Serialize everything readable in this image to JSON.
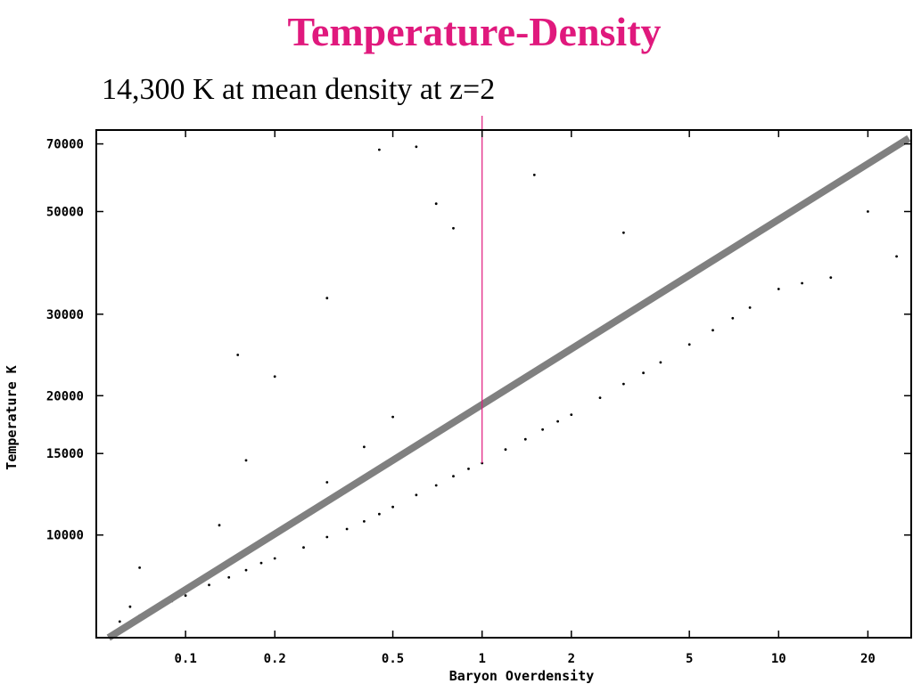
{
  "slide": {
    "title": "Temperature-Density",
    "annotation": "14,300 K at mean density at z=2"
  },
  "colors": {
    "title": "#e0197d",
    "points": "#000000",
    "fit_line": "#808080",
    "arrow": "#e0197d"
  },
  "chart_data": {
    "type": "scatter",
    "xlabel": "Baryon Overdensity",
    "ylabel": "Temperature  K",
    "xscale": "log",
    "yscale": "log",
    "xlim": [
      0.05,
      28
    ],
    "ylim": [
      6000,
      75000
    ],
    "x_ticks": [
      0.1,
      0.2,
      0.5,
      1,
      2,
      5,
      10,
      20
    ],
    "x_tick_labels": [
      "0.1",
      "0.2",
      "0.5",
      "1",
      "2",
      "5",
      "10",
      "20"
    ],
    "y_ticks": [
      10000,
      15000,
      20000,
      30000,
      50000,
      70000
    ],
    "y_tick_labels": [
      "10000",
      "15000",
      "20000",
      "30000",
      "50000",
      "70000"
    ],
    "grid": false,
    "fit_line": {
      "x": [
        0.055,
        27.5
      ],
      "y": [
        6000,
        72000
      ]
    },
    "annotation_point": {
      "x": 1,
      "y": 14300
    },
    "series": [
      {
        "points": [
          [
            0.06,
            6500
          ],
          [
            0.07,
            6700
          ],
          [
            0.08,
            6900
          ],
          [
            0.09,
            7200
          ],
          [
            0.1,
            7400
          ],
          [
            0.12,
            7800
          ],
          [
            0.14,
            8100
          ],
          [
            0.16,
            8400
          ],
          [
            0.18,
            8700
          ],
          [
            0.2,
            8900
          ],
          [
            0.25,
            9400
          ],
          [
            0.3,
            9900
          ],
          [
            0.35,
            10300
          ],
          [
            0.4,
            10700
          ],
          [
            0.45,
            11100
          ],
          [
            0.5,
            11500
          ],
          [
            0.6,
            12200
          ],
          [
            0.7,
            12800
          ],
          [
            0.8,
            13400
          ],
          [
            0.9,
            13900
          ],
          [
            1.0,
            14300
          ],
          [
            1.2,
            15300
          ],
          [
            1.4,
            16100
          ],
          [
            1.6,
            16900
          ],
          [
            1.8,
            17600
          ],
          [
            2.0,
            18200
          ],
          [
            2.5,
            19800
          ],
          [
            3.0,
            21200
          ],
          [
            3.5,
            22400
          ],
          [
            4.0,
            23600
          ],
          [
            5.0,
            25800
          ],
          [
            6.0,
            27700
          ],
          [
            7.0,
            29400
          ],
          [
            8.0,
            31000
          ],
          [
            10.0,
            34000
          ],
          [
            0.15,
            24500
          ],
          [
            0.2,
            22000
          ],
          [
            0.16,
            14500
          ],
          [
            0.13,
            10500
          ],
          [
            0.3,
            32500
          ],
          [
            0.45,
            68000
          ],
          [
            0.6,
            69000
          ],
          [
            0.7,
            52000
          ],
          [
            0.8,
            46000
          ],
          [
            1.5,
            60000
          ],
          [
            3.0,
            45000
          ],
          [
            12.0,
            35000
          ],
          [
            15.0,
            36000
          ],
          [
            20.0,
            50000
          ],
          [
            25.0,
            40000
          ],
          [
            0.07,
            8500
          ],
          [
            0.065,
            7000
          ],
          [
            0.3,
            13000
          ],
          [
            0.4,
            15500
          ],
          [
            0.5,
            18000
          ]
        ]
      }
    ]
  }
}
